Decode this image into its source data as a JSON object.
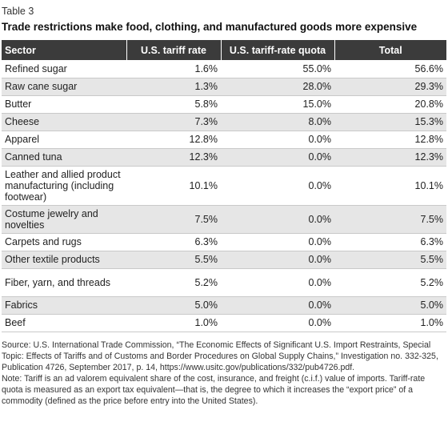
{
  "table_label": "Table 3",
  "title": "Trade restrictions make food, clothing, and manufactured goods more expensive",
  "columns": [
    "Sector",
    "U.S. tariff rate",
    "U.S. tariff-rate quota",
    "Total"
  ],
  "rows": [
    {
      "sector": "Refined sugar",
      "tariff": "1.6%",
      "quota": "55.0%",
      "total": "56.6%"
    },
    {
      "sector": "Raw cane sugar",
      "tariff": "1.3%",
      "quota": "28.0%",
      "total": "29.3%"
    },
    {
      "sector": "Butter",
      "tariff": "5.8%",
      "quota": "15.0%",
      "total": "20.8%"
    },
    {
      "sector": "Cheese",
      "tariff": "7.3%",
      "quota": "8.0%",
      "total": "15.3%"
    },
    {
      "sector": "Apparel",
      "tariff": "12.8%",
      "quota": "0.0%",
      "total": "12.8%"
    },
    {
      "sector": "Canned tuna",
      "tariff": "12.3%",
      "quota": "0.0%",
      "total": "12.3%"
    },
    {
      "sector": "Leather and allied product manufacturing (including footwear)",
      "tariff": "10.1%",
      "quota": "0.0%",
      "total": "10.1%"
    },
    {
      "sector": "Costume jewelry and novelties",
      "tariff": "7.5%",
      "quota": "0.0%",
      "total": "7.5%"
    },
    {
      "sector": "Carpets and rugs",
      "tariff": "6.3%",
      "quota": "0.0%",
      "total": "6.3%"
    },
    {
      "sector": "Other textile products",
      "tariff": "5.5%",
      "quota": "0.0%",
      "total": "5.5%"
    },
    {
      "sector": "Fiber, yarn, and threads",
      "tariff": "5.2%",
      "quota": "0.0%",
      "total": "5.2%"
    },
    {
      "sector": "Fabrics",
      "tariff": "5.0%",
      "quota": "0.0%",
      "total": "5.0%"
    },
    {
      "sector": "Beef",
      "tariff": "1.0%",
      "quota": "0.0%",
      "total": "1.0%"
    }
  ],
  "source": "Source: U.S. International Trade Commission, “The Economic Effects of Significant U.S. Import Restraints, Special Topic: Effects of Tariffs and of Customs and Border Procedures on Global Supply Chains,” Investigation no. 332-325, Publication 4726, September 2017, p. 14, https://www.usitc.gov/publications/332/pub4726.pdf.",
  "note": "Note: Tariff is an ad valorem equivalent share of the cost, insurance, and freight (c.i.f.) value of imports. Tariff-rate quota is measured as an export tax equivalent—that is, the degree to which it increases the “export price” of a commodity (defined as the price before entry into the United States)."
}
